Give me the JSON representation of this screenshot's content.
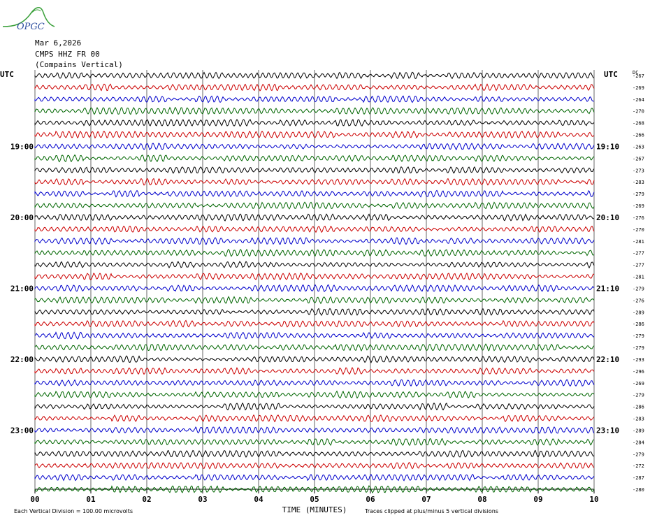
{
  "header": {
    "logo_text": "OPGC",
    "date": "Mar 6,2026",
    "station": "CMPS HHZ FR 00",
    "station_name": "(Compains Vertical)"
  },
  "colors": {
    "trace_cycle": [
      "#000000",
      "#cc0000",
      "#0000cc",
      "#006600"
    ],
    "grid": "#000000",
    "logo": "#3aa03a",
    "logo_text": "#3050a0"
  },
  "chart_data": {
    "type": "line",
    "title": "",
    "xlabel": "TIME (MINUTES)",
    "ylabel": "",
    "x_ticks": [
      "00",
      "01",
      "02",
      "03",
      "04",
      "05",
      "06",
      "07",
      "08",
      "09",
      "10"
    ],
    "xlim": [
      0,
      10
    ],
    "left_axis_label": "UTC",
    "right_axis_label": "UTC",
    "right_header_label": "DC",
    "left_hour_labels": [
      {
        "trace_index": 6,
        "label": "19:00"
      },
      {
        "trace_index": 12,
        "label": "20:00"
      },
      {
        "trace_index": 18,
        "label": "21:00"
      },
      {
        "trace_index": 24,
        "label": "22:00"
      },
      {
        "trace_index": 30,
        "label": "23:00"
      }
    ],
    "right_hour_labels": [
      {
        "trace_index": 6,
        "label": "19:10"
      },
      {
        "trace_index": 12,
        "label": "20:10"
      },
      {
        "trace_index": 18,
        "label": "21:10"
      },
      {
        "trace_index": 24,
        "label": "22:10"
      },
      {
        "trace_index": 30,
        "label": "23:10"
      }
    ],
    "trace_count": 36,
    "dc_offsets": [
      "-267",
      "-269",
      "-264",
      "-270",
      "-268",
      "-266",
      "-263",
      "-267",
      "-273",
      "-283",
      "-279",
      "-269",
      "-276",
      "-270",
      "-281",
      "-277",
      "-277",
      "-281",
      "-279",
      "-276",
      "-289",
      "-286",
      "-279",
      "-279",
      "-293",
      "-296",
      "-269",
      "-279",
      "-286",
      "-283",
      "-289",
      "-284",
      "-279",
      "-272",
      "-287",
      "-280"
    ],
    "footer_left": "Each Vertical Division =  100.00 microvolts",
    "footer_right": "Traces clipped at plus/minus 5 vertical divisions",
    "grid": true
  }
}
